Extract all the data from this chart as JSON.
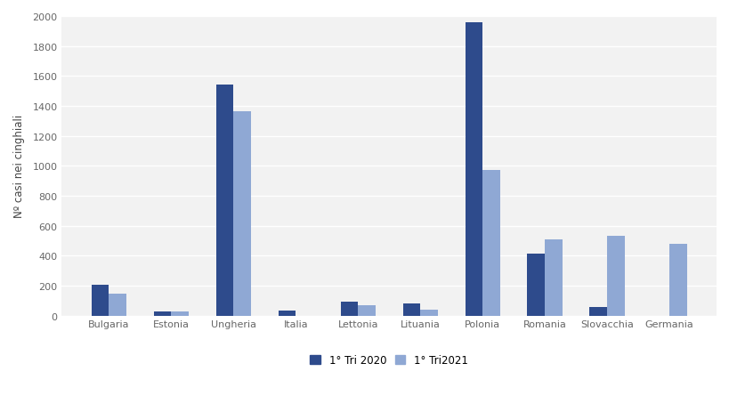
{
  "categories": [
    "Bulgaria",
    "Estonia",
    "Ungheria",
    "Italia",
    "Lettonia",
    "Lituania",
    "Polonia",
    "Romania",
    "Slovacchia",
    "Germania"
  ],
  "values_2020": [
    205,
    25,
    1540,
    32,
    95,
    80,
    1960,
    415,
    60,
    0
  ],
  "values_2021": [
    145,
    28,
    1365,
    0,
    68,
    42,
    975,
    510,
    530,
    478
  ],
  "color_2020": "#2E4B8C",
  "color_2021": "#8FA8D4",
  "ylabel": "Nº casi nei cinghiali",
  "legend_2020": "1° Tri 2020",
  "legend_2021": "1° Tri2021",
  "ylim": [
    0,
    2000
  ],
  "yticks": [
    0,
    200,
    400,
    600,
    800,
    1000,
    1200,
    1400,
    1600,
    1800,
    2000
  ],
  "background_color": "#FFFFFF",
  "plot_bg_color": "#F2F2F2",
  "grid_color": "#FFFFFF",
  "bar_width": 0.28,
  "figsize": [
    8.2,
    4.64
  ],
  "dpi": 100,
  "tick_label_color": "#666666",
  "ylabel_color": "#444444"
}
